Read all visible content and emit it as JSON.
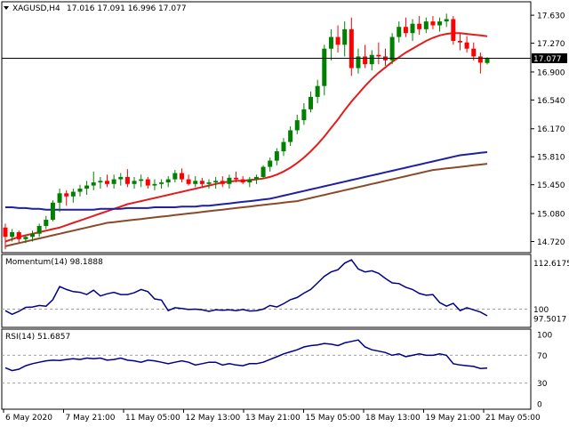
{
  "header": {
    "symbol": "XAGUSD,H4",
    "ohlc": "17.016 17.091 16.996 17.077"
  },
  "colors": {
    "bull_candle": "#008000",
    "bear_candle": "#ff0000",
    "ma_fast": "#e51c1c",
    "ma_mid": "#1f1fa0",
    "ma_slow": "#8a4a2a",
    "indicator_line": "#00008b",
    "price_tag_bg": "#000000",
    "price_tag_fg": "#ffffff",
    "dashed_level": "#a0a0a0"
  },
  "chart_data": [
    {
      "type": "candlestick",
      "title": "XAGUSD,H4",
      "last_price": 17.077,
      "ylim": [
        14.6,
        17.78
      ],
      "y_ticks": [
        "17.630",
        "17.270",
        "16.900",
        "16.540",
        "16.170",
        "15.810",
        "15.450",
        "15.080",
        "14.720"
      ],
      "x_ticks": [
        "6 May 2020",
        "7 May 21:00",
        "11 May 05:00",
        "12 May 13:00",
        "13 May 21:00",
        "15 May 05:00",
        "18 May 13:00",
        "19 May 21:00",
        "21 May 05:00"
      ],
      "candles": [
        [
          14.9,
          14.95,
          14.62,
          14.78
        ],
        [
          14.78,
          14.88,
          14.72,
          14.84
        ],
        [
          14.84,
          14.86,
          14.7,
          14.75
        ],
        [
          14.75,
          14.8,
          14.7,
          14.78
        ],
        [
          14.78,
          14.86,
          14.72,
          14.82
        ],
        [
          14.82,
          14.95,
          14.78,
          14.92
        ],
        [
          14.92,
          15.05,
          14.88,
          15.0
        ],
        [
          15.0,
          15.25,
          14.98,
          15.22
        ],
        [
          15.22,
          15.4,
          15.1,
          15.34
        ],
        [
          15.34,
          15.38,
          15.18,
          15.3
        ],
        [
          15.3,
          15.4,
          15.22,
          15.36
        ],
        [
          15.36,
          15.45,
          15.3,
          15.4
        ],
        [
          15.4,
          15.5,
          15.32,
          15.44
        ],
        [
          15.44,
          15.62,
          15.38,
          15.48
        ],
        [
          15.48,
          15.55,
          15.4,
          15.5
        ],
        [
          15.5,
          15.58,
          15.42,
          15.46
        ],
        [
          15.46,
          15.58,
          15.4,
          15.52
        ],
        [
          15.52,
          15.6,
          15.44,
          15.55
        ],
        [
          15.55,
          15.65,
          15.42,
          15.46
        ],
        [
          15.46,
          15.55,
          15.4,
          15.5
        ],
        [
          15.5,
          15.58,
          15.42,
          15.52
        ],
        [
          15.52,
          15.55,
          15.4,
          15.44
        ],
        [
          15.44,
          15.52,
          15.38,
          15.46
        ],
        [
          15.46,
          15.52,
          15.4,
          15.48
        ],
        [
          15.48,
          15.56,
          15.42,
          15.52
        ],
        [
          15.52,
          15.64,
          15.48,
          15.6
        ],
        [
          15.6,
          15.66,
          15.48,
          15.52
        ],
        [
          15.52,
          15.58,
          15.44,
          15.46
        ],
        [
          15.46,
          15.56,
          15.42,
          15.5
        ],
        [
          15.5,
          15.54,
          15.42,
          15.46
        ],
        [
          15.46,
          15.52,
          15.4,
          15.48
        ],
        [
          15.48,
          15.55,
          15.4,
          15.5
        ],
        [
          15.5,
          15.56,
          15.42,
          15.46
        ],
        [
          15.46,
          15.58,
          15.4,
          15.54
        ],
        [
          15.54,
          15.62,
          15.48,
          15.52
        ],
        [
          15.52,
          15.56,
          15.46,
          15.48
        ],
        [
          15.48,
          15.55,
          15.42,
          15.52
        ],
        [
          15.52,
          15.58,
          15.46,
          15.55
        ],
        [
          15.55,
          15.7,
          15.52,
          15.68
        ],
        [
          15.68,
          15.8,
          15.62,
          15.76
        ],
        [
          15.76,
          15.92,
          15.7,
          15.88
        ],
        [
          15.88,
          16.05,
          15.82,
          16.0
        ],
        [
          16.0,
          16.2,
          15.95,
          16.15
        ],
        [
          16.15,
          16.35,
          16.1,
          16.28
        ],
        [
          16.28,
          16.5,
          16.22,
          16.42
        ],
        [
          16.42,
          16.65,
          16.38,
          16.58
        ],
        [
          16.58,
          16.8,
          16.5,
          16.72
        ],
        [
          16.72,
          17.25,
          16.6,
          17.2
        ],
        [
          17.2,
          17.45,
          17.05,
          17.35
        ],
        [
          17.35,
          17.5,
          17.15,
          17.25
        ],
        [
          17.25,
          17.55,
          17.1,
          17.45
        ],
        [
          17.45,
          17.6,
          16.85,
          16.95
        ],
        [
          16.95,
          17.2,
          16.88,
          17.1
        ],
        [
          17.1,
          17.25,
          16.95,
          17.0
        ],
        [
          17.0,
          17.18,
          16.92,
          17.12
        ],
        [
          17.12,
          17.28,
          17.0,
          17.1
        ],
        [
          17.1,
          17.2,
          16.98,
          17.05
        ],
        [
          17.05,
          17.4,
          17.0,
          17.35
        ],
        [
          17.35,
          17.55,
          17.28,
          17.48
        ],
        [
          17.48,
          17.6,
          17.35,
          17.4
        ],
        [
          17.4,
          17.58,
          17.3,
          17.52
        ],
        [
          17.52,
          17.62,
          17.38,
          17.45
        ],
        [
          17.45,
          17.6,
          17.4,
          17.55
        ],
        [
          17.55,
          17.62,
          17.45,
          17.5
        ],
        [
          17.5,
          17.6,
          17.42,
          17.55
        ],
        [
          17.55,
          17.65,
          17.48,
          17.58
        ],
        [
          17.58,
          17.62,
          17.25,
          17.3
        ],
        [
          17.3,
          17.4,
          17.18,
          17.28
        ],
        [
          17.28,
          17.36,
          17.15,
          17.2
        ],
        [
          17.2,
          17.28,
          17.05,
          17.1
        ],
        [
          17.1,
          17.15,
          16.88,
          17.02
        ],
        [
          17.016,
          17.091,
          16.996,
          17.077
        ]
      ],
      "series": [
        {
          "values": [
            14.72,
            14.75,
            14.78,
            14.8,
            14.82,
            14.84,
            14.86,
            14.88,
            14.9,
            14.93,
            14.96,
            14.99,
            15.02,
            15.05,
            15.08,
            15.11,
            15.14,
            15.17,
            15.2,
            15.22,
            15.24,
            15.26,
            15.28,
            15.3,
            15.32,
            15.34,
            15.36,
            15.38,
            15.4,
            15.42,
            15.44,
            15.46,
            15.48,
            15.49,
            15.5,
            15.5,
            15.51,
            15.52,
            15.53,
            15.55,
            15.58,
            15.62,
            15.67,
            15.73,
            15.8,
            15.88,
            15.97,
            16.07,
            16.18,
            16.29,
            16.41,
            16.52,
            16.62,
            16.72,
            16.81,
            16.89,
            16.96,
            17.03,
            17.09,
            17.15,
            17.2,
            17.25,
            17.3,
            17.34,
            17.37,
            17.39,
            17.4,
            17.4,
            17.39,
            17.38,
            17.37,
            17.36
          ]
        },
        {
          "values": [
            15.16,
            15.16,
            15.15,
            15.15,
            15.14,
            15.14,
            15.13,
            15.13,
            15.13,
            15.13,
            15.13,
            15.13,
            15.13,
            15.13,
            15.14,
            15.14,
            15.14,
            15.14,
            15.15,
            15.15,
            15.15,
            15.15,
            15.16,
            15.16,
            15.16,
            15.16,
            15.17,
            15.17,
            15.17,
            15.18,
            15.18,
            15.19,
            15.2,
            15.21,
            15.22,
            15.23,
            15.24,
            15.25,
            15.26,
            15.27,
            15.29,
            15.31,
            15.33,
            15.35,
            15.37,
            15.39,
            15.41,
            15.43,
            15.45,
            15.47,
            15.49,
            15.51,
            15.53,
            15.55,
            15.57,
            15.59,
            15.61,
            15.63,
            15.65,
            15.67,
            15.69,
            15.71,
            15.73,
            15.75,
            15.77,
            15.79,
            15.81,
            15.83,
            15.84,
            15.85,
            15.86,
            15.87
          ]
        },
        {
          "values": [
            14.66,
            14.68,
            14.7,
            14.72,
            14.74,
            14.76,
            14.78,
            14.8,
            14.82,
            14.84,
            14.86,
            14.88,
            14.9,
            14.92,
            14.94,
            14.96,
            14.97,
            14.98,
            14.99,
            15.0,
            15.01,
            15.02,
            15.03,
            15.04,
            15.05,
            15.06,
            15.07,
            15.08,
            15.09,
            15.1,
            15.11,
            15.12,
            15.13,
            15.14,
            15.15,
            15.16,
            15.17,
            15.18,
            15.19,
            15.2,
            15.21,
            15.22,
            15.23,
            15.24,
            15.26,
            15.28,
            15.3,
            15.32,
            15.34,
            15.36,
            15.38,
            15.4,
            15.42,
            15.44,
            15.46,
            15.48,
            15.5,
            15.52,
            15.54,
            15.56,
            15.58,
            15.6,
            15.62,
            15.64,
            15.65,
            15.66,
            15.67,
            15.68,
            15.69,
            15.7,
            15.71,
            15.72
          ]
        }
      ]
    },
    {
      "type": "line",
      "title": "Momentum(14) 98.1888",
      "ylim": [
        95.5,
        114.5
      ],
      "y_ticks": [
        "112.6175",
        "100",
        "97.5017"
      ],
      "dashed_level": 100,
      "values": [
        99.6,
        98.6,
        99.4,
        100.5,
        100.6,
        101.0,
        100.8,
        102.6,
        106.2,
        105.4,
        104.8,
        104.6,
        104.0,
        105.2,
        103.6,
        104.2,
        104.6,
        104.0,
        104.0,
        104.5,
        105.4,
        104.8,
        102.8,
        102.5,
        99.6,
        100.4,
        100.2,
        99.9,
        100.0,
        99.8,
        99.4,
        99.8,
        99.7,
        99.8,
        99.6,
        99.9,
        99.5,
        99.6,
        100.0,
        101.0,
        100.6,
        101.5,
        102.6,
        103.2,
        104.4,
        105.4,
        107.2,
        109.0,
        110.2,
        110.8,
        112.6,
        113.5,
        111.0,
        110.2,
        110.5,
        109.8,
        108.4,
        107.2,
        107.0,
        106.0,
        105.4,
        104.3,
        103.8,
        104.0,
        101.8,
        100.8,
        101.6,
        99.6,
        100.4,
        99.8,
        99.2,
        98.1888
      ]
    },
    {
      "type": "line",
      "title": "RSI(14) 51.6857",
      "ylim": [
        0,
        100
      ],
      "y_ticks": [
        "100",
        "70",
        "30",
        "0"
      ],
      "dashed_levels": [
        70,
        30
      ],
      "values": [
        52.0,
        48.0,
        50.0,
        55.0,
        58.0,
        60.0,
        62.0,
        63.0,
        62.5,
        64.0,
        65.0,
        64.0,
        66.0,
        65.0,
        66.0,
        63.0,
        64.0,
        66.0,
        63.0,
        62.0,
        60.0,
        63.0,
        62.0,
        60.0,
        58.0,
        60.0,
        62.0,
        60.0,
        56.0,
        58.0,
        60.0,
        60.0,
        56.0,
        58.0,
        56.0,
        55.0,
        58.0,
        58.0,
        60.0,
        64.0,
        68.0,
        72.0,
        75.0,
        78.0,
        82.0,
        84.0,
        85.0,
        87.0,
        86.0,
        84.0,
        88.0,
        90.0,
        92.0,
        82.0,
        78.0,
        76.0,
        74.0,
        70.0,
        72.0,
        68.0,
        70.0,
        72.0,
        70.0,
        70.0,
        72.0,
        70.0,
        58.0,
        56.0,
        55.0,
        54.0,
        51.0,
        51.6857
      ]
    }
  ]
}
